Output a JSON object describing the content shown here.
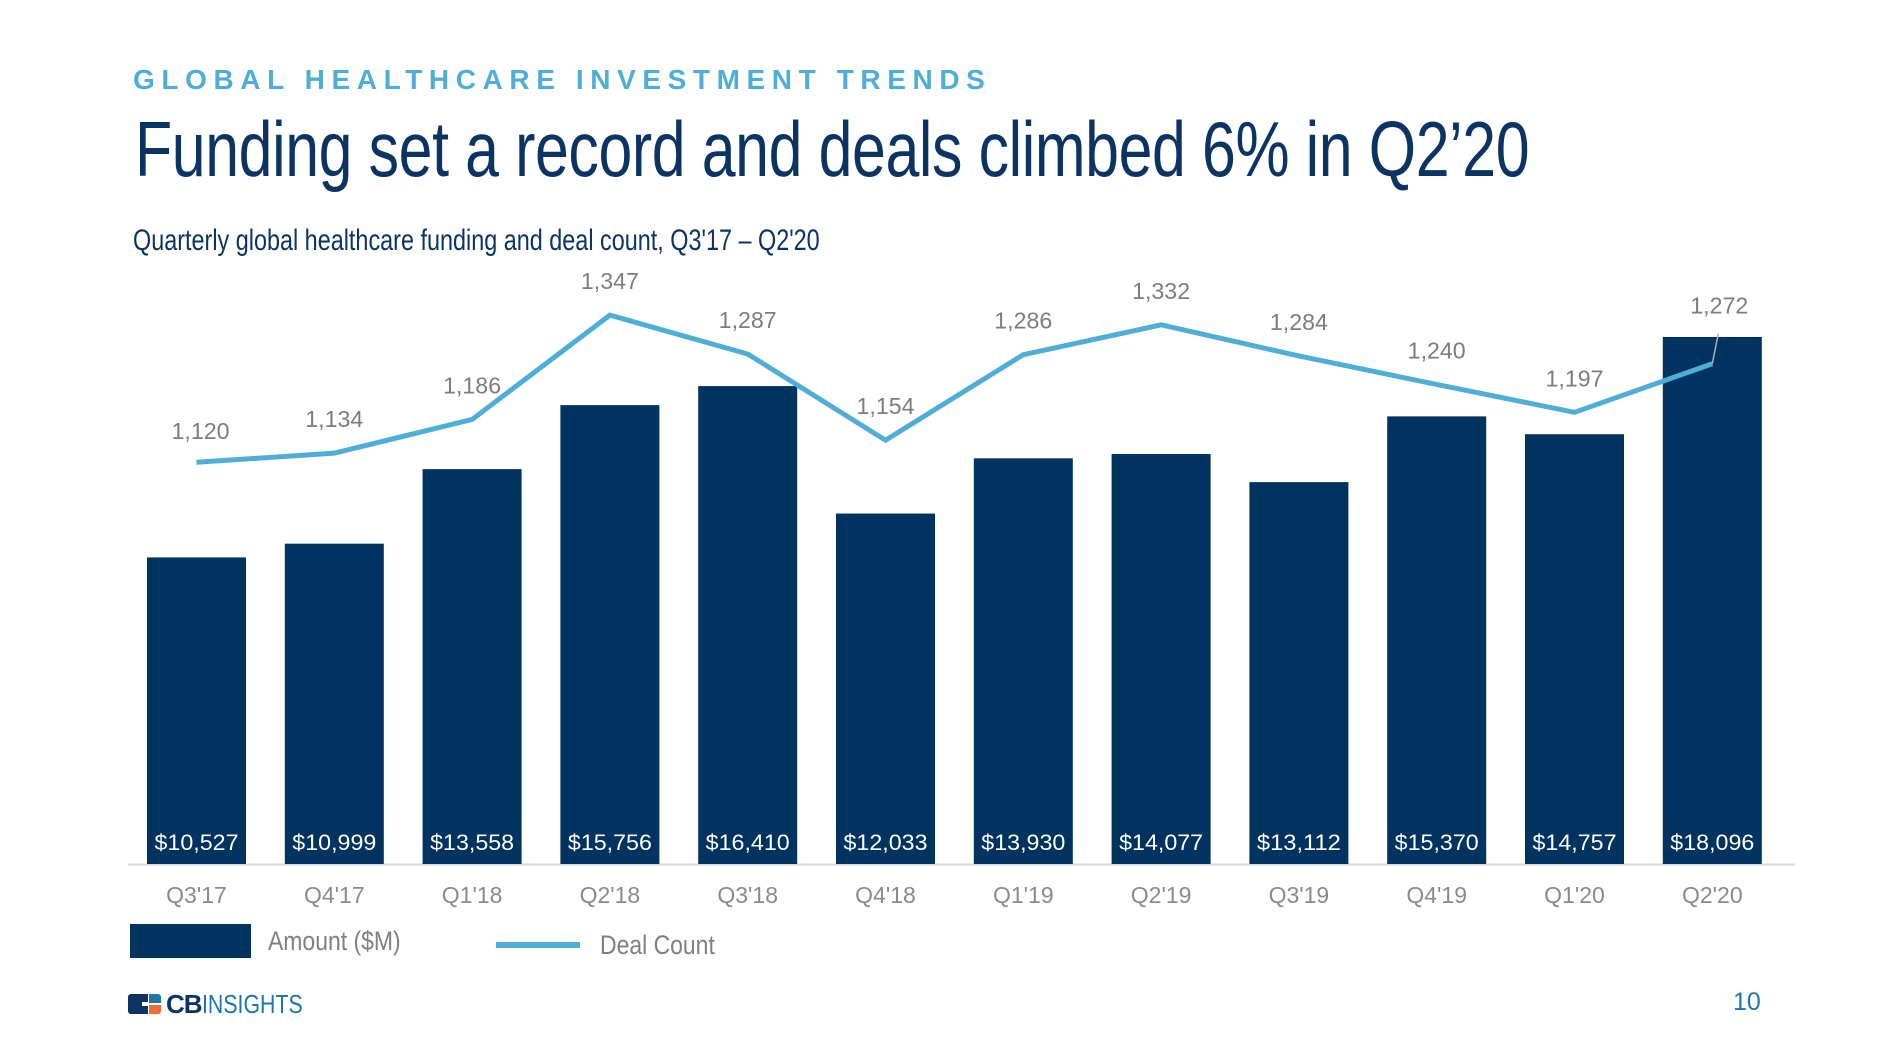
{
  "header": {
    "kicker": "GLOBAL HEALTHCARE INVESTMENT TRENDS",
    "title": "Funding set a record and deals climbed 6% in Q2’20",
    "subtitle": "Quarterly global healthcare funding and deal count, Q3'17 – Q2'20"
  },
  "colors": {
    "bar": "#00335f",
    "line": "#4eaed6",
    "kicker": "#4eaed6",
    "title": "#0b3464",
    "label_gray": "#7d7d7d"
  },
  "chart_data": {
    "type": "bar",
    "combo": "bar+line",
    "title": "Quarterly global healthcare funding and deal count, Q3'17 – Q2'20",
    "xlabel": "",
    "ylabel": "",
    "categories": [
      "Q3'17",
      "Q4'17",
      "Q1'18",
      "Q2'18",
      "Q3'18",
      "Q4'18",
      "Q1'19",
      "Q2'19",
      "Q3'19",
      "Q4'19",
      "Q1'20",
      "Q2'20"
    ],
    "series": [
      {
        "name": "Amount ($M)",
        "type": "bar",
        "axis": "left",
        "values": [
          10527,
          10999,
          13558,
          15756,
          16410,
          12033,
          13930,
          14077,
          13112,
          15370,
          14757,
          18096
        ],
        "labels": [
          "$10,527",
          "$10,999",
          "$13,558",
          "$15,756",
          "$16,410",
          "$12,033",
          "$13,930",
          "$14,077",
          "$13,112",
          "$15,370",
          "$14,757",
          "$18,096"
        ],
        "ylim": [
          0,
          22250
        ]
      },
      {
        "name": "Deal Count",
        "type": "line",
        "axis": "right",
        "values": [
          1120,
          1134,
          1186,
          1347,
          1287,
          1154,
          1286,
          1332,
          1284,
          1240,
          1197,
          1272
        ],
        "labels": [
          "1,120",
          "1,134",
          "1,186",
          "1,347",
          "1,287",
          "1,154",
          "1,286",
          "1,332",
          "1,284",
          "1,240",
          "1,197",
          "1,272"
        ],
        "ylim": [
          500,
          1500
        ]
      }
    ],
    "axes_visible": false,
    "grid": false,
    "legend": {
      "placement": "bottom-left",
      "entries": [
        "Amount ($M)",
        "Deal Count"
      ]
    }
  },
  "legend": {
    "amount_label": "Amount ($M)",
    "deal_label": "Deal Count"
  },
  "footer": {
    "logo_cb": "CB",
    "logo_insights": "INSIGHTS",
    "page_number": "10"
  }
}
